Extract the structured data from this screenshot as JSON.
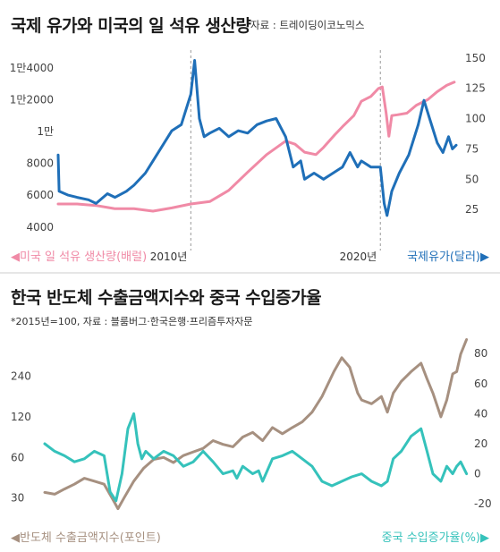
{
  "top": {
    "title": "국제 유가와 미국의 일 석유 생산량",
    "source": "자료 : 트레이딩이코노믹스"
  },
  "bottom": {
    "title": "한국 반도체 수출금액지수와 중국 수입증가율",
    "source": "*2015년=100, 자료 : 블룸버그·한국은행·프리즘투자자문"
  },
  "colors": {
    "pink": "#f08aa6",
    "blue": "#1f6fb8",
    "teal": "#35c2bb",
    "taupe": "#a69080"
  },
  "chart_data": [
    {
      "type": "line",
      "title": "국제 유가와 미국의 일 석유 생산량",
      "x_range": [
        2003,
        2024
      ],
      "x_tick_labels": [
        {
          "x": 2010,
          "label": "2010년"
        },
        {
          "x": 2020,
          "label": "2020년"
        }
      ],
      "left_axis": {
        "ylim": [
          3200,
          15000
        ],
        "tick_values": [
          4000,
          6000,
          8000,
          10000,
          12000,
          14000
        ],
        "tick_labels": [
          "4000",
          "6000",
          "8000",
          "1만",
          "1만2000",
          "1만4000"
        ],
        "label": "◀미국 일 석유 생산량(배럴)"
      },
      "right_axis": {
        "ylim": [
          0,
          155
        ],
        "tick_values": [
          25,
          50,
          75,
          100,
          125,
          150
        ],
        "tick_labels": [
          "25",
          "50",
          "75",
          "100",
          "125",
          "150"
        ],
        "label": "국제유가(달러)▶"
      },
      "series": [
        {
          "name": "미국 일 석유 생산량(배럴)",
          "axis": "left",
          "color": "pink",
          "points": [
            [
              2003.0,
              5450
            ],
            [
              2004.0,
              5450
            ],
            [
              2005.0,
              5350
            ],
            [
              2006.0,
              5150
            ],
            [
              2007.0,
              5150
            ],
            [
              2008.0,
              5000
            ],
            [
              2009.0,
              5200
            ],
            [
              2010.0,
              5450
            ],
            [
              2011.0,
              5600
            ],
            [
              2012.0,
              6300
            ],
            [
              2013.0,
              7450
            ],
            [
              2014.0,
              8550
            ],
            [
              2015.0,
              9400
            ],
            [
              2015.5,
              9200
            ],
            [
              2016.0,
              8700
            ],
            [
              2016.6,
              8550
            ],
            [
              2017.0,
              9000
            ],
            [
              2017.6,
              9800
            ],
            [
              2018.0,
              10300
            ],
            [
              2018.6,
              11000
            ],
            [
              2019.0,
              11900
            ],
            [
              2019.5,
              12200
            ],
            [
              2019.9,
              12700
            ],
            [
              2020.1,
              12800
            ],
            [
              2020.3,
              11200
            ],
            [
              2020.45,
              9700
            ],
            [
              2020.6,
              11000
            ],
            [
              2020.9,
              11050
            ],
            [
              2021.4,
              11150
            ],
            [
              2021.9,
              11650
            ],
            [
              2022.5,
              12000
            ],
            [
              2023.0,
              12500
            ],
            [
              2023.5,
              12900
            ],
            [
              2023.9,
              13100
            ]
          ]
        },
        {
          "name": "국제유가",
          "axis": "right",
          "color": "blue",
          "points": [
            [
              2003.0,
              70
            ],
            [
              2003.05,
              40
            ],
            [
              2003.5,
              37
            ],
            [
              2004.0,
              35
            ],
            [
              2004.6,
              33
            ],
            [
              2005.0,
              30
            ],
            [
              2005.6,
              38
            ],
            [
              2006.0,
              35
            ],
            [
              2006.6,
              40
            ],
            [
              2007.0,
              45
            ],
            [
              2007.6,
              55
            ],
            [
              2008.0,
              65
            ],
            [
              2008.6,
              80
            ],
            [
              2009.0,
              90
            ],
            [
              2009.5,
              95
            ],
            [
              2010.0,
              120
            ],
            [
              2010.2,
              148
            ],
            [
              2010.45,
              100
            ],
            [
              2010.7,
              85
            ],
            [
              2011.0,
              88
            ],
            [
              2011.5,
              92
            ],
            [
              2012.0,
              85
            ],
            [
              2012.5,
              90
            ],
            [
              2013.0,
              88
            ],
            [
              2013.5,
              95
            ],
            [
              2014.0,
              98
            ],
            [
              2014.5,
              100
            ],
            [
              2015.0,
              85
            ],
            [
              2015.4,
              60
            ],
            [
              2015.8,
              65
            ],
            [
              2016.0,
              50
            ],
            [
              2016.5,
              55
            ],
            [
              2017.0,
              50
            ],
            [
              2017.5,
              55
            ],
            [
              2018.0,
              60
            ],
            [
              2018.4,
              72
            ],
            [
              2018.8,
              60
            ],
            [
              2019.0,
              65
            ],
            [
              2019.5,
              60
            ],
            [
              2020.0,
              60
            ],
            [
              2020.2,
              30
            ],
            [
              2020.35,
              20
            ],
            [
              2020.6,
              40
            ],
            [
              2021.0,
              55
            ],
            [
              2021.5,
              70
            ],
            [
              2022.0,
              95
            ],
            [
              2022.3,
              115
            ],
            [
              2022.6,
              100
            ],
            [
              2023.0,
              80
            ],
            [
              2023.3,
              72
            ],
            [
              2023.6,
              85
            ],
            [
              2023.8,
              75
            ],
            [
              2024.0,
              78
            ]
          ]
        }
      ]
    },
    {
      "type": "line",
      "title": "한국 반도체 수출금액지수와 중국 수입증가율",
      "x_range": [
        2003,
        2024
      ],
      "x_tick_labels": [],
      "left_axis": {
        "tick_values": [
          30,
          60,
          120,
          240
        ],
        "tick_labels": [
          "30",
          "60",
          "120",
          "240"
        ],
        "scale": "log",
        "ylim": [
          21,
          520
        ],
        "label": "◀반도체 수출금액지수(포인트)"
      },
      "right_axis": {
        "ylim": [
          -30,
          95
        ],
        "tick_values": [
          -20,
          0,
          20,
          40,
          60,
          80
        ],
        "tick_labels": [
          "-20",
          "0",
          "20",
          "40",
          "60",
          "80"
        ],
        "label": "중국 수입증가율(%)▶"
      },
      "series": [
        {
          "name": "반도체 수출금액지수",
          "axis": "left",
          "color": "taupe",
          "points": [
            [
              2003.0,
              33
            ],
            [
              2003.5,
              32
            ],
            [
              2004.0,
              35
            ],
            [
              2004.5,
              38
            ],
            [
              2005.0,
              42
            ],
            [
              2005.5,
              40
            ],
            [
              2006.0,
              38
            ],
            [
              2006.4,
              30
            ],
            [
              2006.7,
              25
            ],
            [
              2007.0,
              30
            ],
            [
              2007.5,
              40
            ],
            [
              2008.0,
              50
            ],
            [
              2008.5,
              58
            ],
            [
              2009.0,
              60
            ],
            [
              2009.5,
              55
            ],
            [
              2010.0,
              62
            ],
            [
              2010.5,
              66
            ],
            [
              2011.0,
              70
            ],
            [
              2011.5,
              80
            ],
            [
              2012.0,
              75
            ],
            [
              2012.5,
              72
            ],
            [
              2013.0,
              85
            ],
            [
              2013.5,
              92
            ],
            [
              2014.0,
              80
            ],
            [
              2014.5,
              100
            ],
            [
              2015.0,
              90
            ],
            [
              2015.5,
              100
            ],
            [
              2016.0,
              110
            ],
            [
              2016.5,
              130
            ],
            [
              2017.0,
              170
            ],
            [
              2017.6,
              260
            ],
            [
              2018.0,
              330
            ],
            [
              2018.4,
              280
            ],
            [
              2018.8,
              180
            ],
            [
              2019.0,
              160
            ],
            [
              2019.5,
              150
            ],
            [
              2020.0,
              170
            ],
            [
              2020.3,
              130
            ],
            [
              2020.6,
              180
            ],
            [
              2021.0,
              220
            ],
            [
              2021.5,
              260
            ],
            [
              2022.0,
              300
            ],
            [
              2022.3,
              230
            ],
            [
              2022.6,
              180
            ],
            [
              2023.0,
              120
            ],
            [
              2023.3,
              160
            ],
            [
              2023.6,
              250
            ],
            [
              2023.8,
              260
            ],
            [
              2024.0,
              350
            ],
            [
              2024.3,
              450
            ]
          ]
        },
        {
          "name": "중국 수입증가율",
          "axis": "right",
          "color": "teal",
          "points": [
            [
              2003.0,
              20
            ],
            [
              2003.5,
              15
            ],
            [
              2004.0,
              12
            ],
            [
              2004.5,
              8
            ],
            [
              2005.0,
              10
            ],
            [
              2005.5,
              15
            ],
            [
              2006.0,
              12
            ],
            [
              2006.3,
              -12
            ],
            [
              2006.6,
              -18
            ],
            [
              2006.9,
              0
            ],
            [
              2007.2,
              30
            ],
            [
              2007.5,
              40
            ],
            [
              2007.7,
              20
            ],
            [
              2007.9,
              10
            ],
            [
              2008.1,
              15
            ],
            [
              2008.5,
              10
            ],
            [
              2009.0,
              15
            ],
            [
              2009.5,
              12
            ],
            [
              2010.0,
              5
            ],
            [
              2010.5,
              8
            ],
            [
              2011.0,
              15
            ],
            [
              2011.5,
              8
            ],
            [
              2012.0,
              0
            ],
            [
              2012.5,
              2
            ],
            [
              2012.7,
              -3
            ],
            [
              2013.0,
              5
            ],
            [
              2013.5,
              0
            ],
            [
              2013.8,
              2
            ],
            [
              2014.0,
              -5
            ],
            [
              2014.5,
              10
            ],
            [
              2015.0,
              12
            ],
            [
              2015.5,
              15
            ],
            [
              2016.0,
              10
            ],
            [
              2016.5,
              5
            ],
            [
              2017.0,
              -5
            ],
            [
              2017.5,
              -8
            ],
            [
              2018.0,
              -5
            ],
            [
              2018.5,
              -2
            ],
            [
              2019.0,
              0
            ],
            [
              2019.5,
              -5
            ],
            [
              2020.0,
              -8
            ],
            [
              2020.3,
              -5
            ],
            [
              2020.6,
              10
            ],
            [
              2021.0,
              15
            ],
            [
              2021.5,
              25
            ],
            [
              2022.0,
              30
            ],
            [
              2022.3,
              15
            ],
            [
              2022.6,
              0
            ],
            [
              2023.0,
              -5
            ],
            [
              2023.3,
              5
            ],
            [
              2023.6,
              0
            ],
            [
              2023.8,
              5
            ],
            [
              2024.0,
              8
            ],
            [
              2024.3,
              0
            ]
          ]
        }
      ]
    }
  ]
}
